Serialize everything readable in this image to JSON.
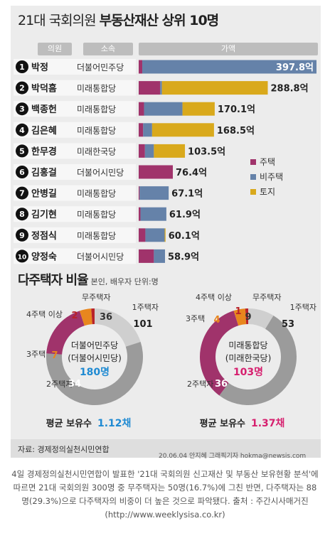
{
  "title": {
    "light": "21대 국회의원 ",
    "bold": "부동산재산 상위 10명"
  },
  "headers": {
    "name": "의원",
    "party": "소속",
    "amount": "가액"
  },
  "legend": [
    {
      "label": "주택",
      "color": "#a0336b"
    },
    {
      "label": "비주택",
      "color": "#6582a9"
    },
    {
      "label": "토지",
      "color": "#d9a91c"
    }
  ],
  "chart_data": [
    {
      "type": "bar",
      "title": "21대 국회의원 부동산재산 상위 10명",
      "unit": "억",
      "series_names": [
        "주택",
        "비주택",
        "토지"
      ],
      "rows": [
        {
          "rank": "1",
          "name": "박정",
          "party": "더불어민주당",
          "total_label": "397.8억",
          "total": 397.8,
          "housing": 8,
          "nonhousing": 389.8,
          "land": 0
        },
        {
          "rank": "2",
          "name": "박덕흠",
          "party": "미래통합당",
          "total_label": "288.8억",
          "total": 288.8,
          "housing": 48,
          "nonhousing": 4,
          "land": 236.8
        },
        {
          "rank": "3",
          "name": "백종헌",
          "party": "미래통합당",
          "total_label": "170.1억",
          "total": 170.1,
          "housing": 12,
          "nonhousing": 86,
          "land": 72.1
        },
        {
          "rank": "4",
          "name": "김은혜",
          "party": "미래통합당",
          "total_label": "168.5억",
          "total": 168.5,
          "housing": 10,
          "nonhousing": 20,
          "land": 138.5
        },
        {
          "rank": "5",
          "name": "한무경",
          "party": "미래한국당",
          "total_label": "103.5억",
          "total": 103.5,
          "housing": 14,
          "nonhousing": 20,
          "land": 69.5
        },
        {
          "rank": "6",
          "name": "김홍걸",
          "party": "더불어시민당",
          "total_label": "76.4억",
          "total": 76.4,
          "housing": 76.4,
          "nonhousing": 0,
          "land": 0
        },
        {
          "rank": "7",
          "name": "안병길",
          "party": "미래통합당",
          "total_label": "67.1억",
          "total": 67.1,
          "housing": 2,
          "nonhousing": 65.1,
          "land": 0
        },
        {
          "rank": "8",
          "name": "김기현",
          "party": "미래통합당",
          "total_label": "61.9억",
          "total": 61.9,
          "housing": 4,
          "nonhousing": 57.9,
          "land": 0
        },
        {
          "rank": "9",
          "name": "정점식",
          "party": "미래통합당",
          "total_label": "60.1억",
          "total": 60.1,
          "housing": 15,
          "nonhousing": 43.1,
          "land": 2
        },
        {
          "rank": "10",
          "name": "양정숙",
          "party": "더불어시민당",
          "total_label": "58.9억",
          "total": 58.9,
          "housing": 34,
          "nonhousing": 24.9,
          "land": 0
        }
      ]
    },
    {
      "type": "pie",
      "title": "더불어민주당 (더불어시민당)",
      "total_label": "180명",
      "labels": [
        "무주택자",
        "1주택자",
        "2주택자",
        "3주택",
        "4주택 이상"
      ],
      "values": [
        36,
        101,
        34,
        7,
        2
      ]
    },
    {
      "type": "pie",
      "title": "미래통합당 (미래한국당)",
      "total_label": "103명",
      "labels": [
        "무주택자",
        "1주택자",
        "2주택자",
        "3주택",
        "4주택 이상"
      ],
      "values": [
        9,
        53,
        36,
        4,
        1
      ]
    }
  ],
  "section2": {
    "title": "다주택자 비율",
    "note": "본인, 배우자 단위:명"
  },
  "donut1": {
    "party1": "더불어민주당",
    "party2": "(더불어시민당)",
    "total": "180명",
    "avg_label": "평균 보유수",
    "avg_value": "1.12채",
    "total_color": "#1f8ad2",
    "labels": {
      "none": "무주택자",
      "one": "1주택자",
      "two": "2주택자",
      "three": "3주택",
      "four": "4주택 이상"
    },
    "values": {
      "none": "36",
      "one": "101",
      "two": "34",
      "three": "7",
      "four": "2"
    }
  },
  "donut2": {
    "party1": "미래통합당",
    "party2": "(미래한국당)",
    "total": "103명",
    "avg_label": "평균 보유수",
    "avg_value": "1.37채",
    "total_color": "#d61f6e",
    "labels": {
      "none": "무주택자",
      "one": "1주택자",
      "two": "2주택자",
      "three": "3주택",
      "four": "4주택 이상"
    },
    "values": {
      "none": "9",
      "one": "53",
      "two": "36",
      "three": "4",
      "four": "1"
    }
  },
  "colors": {
    "none": "#cfcfcf",
    "one": "#9b9b9b",
    "two": "#a0336b",
    "three": "#e8861e",
    "four": "#b8232a"
  },
  "source": "자료: 경제정의실천시민연합",
  "credit": "20.06.04 안지혜 그래픽기자 hokma@newsis.com",
  "caption": "4일 경제정의실천시민연합이 발표한 '21대 국회의원 신고재산 및 부동산 보유현황 분석'에 따르면 21대 국회의원 300명 중 무주택자는 50명(16.7%)에 그친 반면, 다주택자는 88명(29.3%)으로 다주택자의 비중이 더 높은 것으로 파악됐다. 출처 : 주간시사매거진(http://www.weeklysisa.co.kr)"
}
